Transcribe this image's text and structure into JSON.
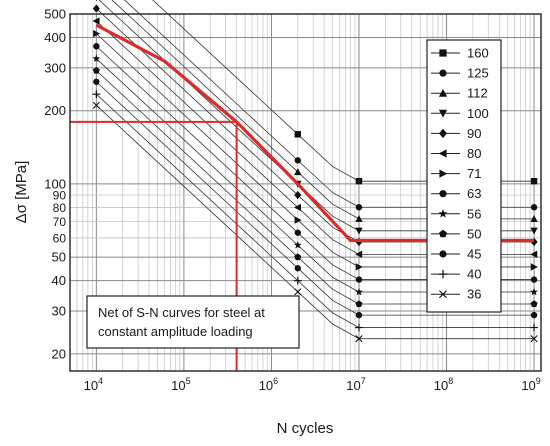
{
  "chart_data": {
    "type": "line",
    "xlabel": "N cycles",
    "ylabel": "Δσ [MPa]",
    "x_scale": "log",
    "y_scale": "log",
    "xlim": [
      5000,
      1200000000
    ],
    "ylim": [
      17,
      500
    ],
    "grid": true,
    "legend_placement": "right",
    "x_ticks": [
      {
        "value": 10000,
        "base": "10",
        "exp": "4"
      },
      {
        "value": 100000,
        "base": "10",
        "exp": "5"
      },
      {
        "value": 1000000,
        "base": "10",
        "exp": "6"
      },
      {
        "value": 10000000,
        "base": "10",
        "exp": "7"
      },
      {
        "value": 100000000,
        "base": "10",
        "exp": "8"
      },
      {
        "value": 1000000000,
        "base": "10",
        "exp": "9"
      }
    ],
    "y_ticks": [
      {
        "value": 500,
        "label": "500"
      },
      {
        "value": 400,
        "label": "400"
      },
      {
        "value": 300,
        "label": "300"
      },
      {
        "value": 200,
        "label": "200"
      },
      {
        "value": 100,
        "label": "100"
      },
      {
        "value": 90,
        "label": "90"
      },
      {
        "value": 80,
        "label": "80"
      },
      {
        "value": 70,
        "label": "70"
      },
      {
        "value": 60,
        "label": "60"
      },
      {
        "value": 50,
        "label": "50"
      },
      {
        "value": 40,
        "label": "40"
      },
      {
        "value": 30,
        "label": "30"
      },
      {
        "value": 20,
        "label": "20"
      }
    ],
    "series": [
      {
        "name": "160",
        "marker": "square"
      },
      {
        "name": "125",
        "marker": "circle"
      },
      {
        "name": "112",
        "marker": "triangle-up"
      },
      {
        "name": "100",
        "marker": "triangle-down"
      },
      {
        "name": "90",
        "marker": "diamond"
      },
      {
        "name": "80",
        "marker": "triangle-left"
      },
      {
        "name": "71",
        "marker": "triangle-right"
      },
      {
        "name": "63",
        "marker": "circle"
      },
      {
        "name": "56",
        "marker": "star"
      },
      {
        "name": "50",
        "marker": "pentagon"
      },
      {
        "name": "45",
        "marker": "circle"
      },
      {
        "name": "40",
        "marker": "plus"
      },
      {
        "name": "36",
        "marker": "x"
      }
    ],
    "highlight": {
      "color": "#dd2a2a",
      "curve_x": [
        10000,
        60000,
        400000,
        2000000,
        8000000,
        1000000000
      ],
      "curve_y": [
        450,
        320,
        180,
        100,
        58.5,
        58.5
      ],
      "marked_point": {
        "x": 400000,
        "y": 180
      }
    },
    "annotation": {
      "lines": [
        "Net of S-N curves for steel at",
        "constant amplitude loading"
      ]
    }
  }
}
